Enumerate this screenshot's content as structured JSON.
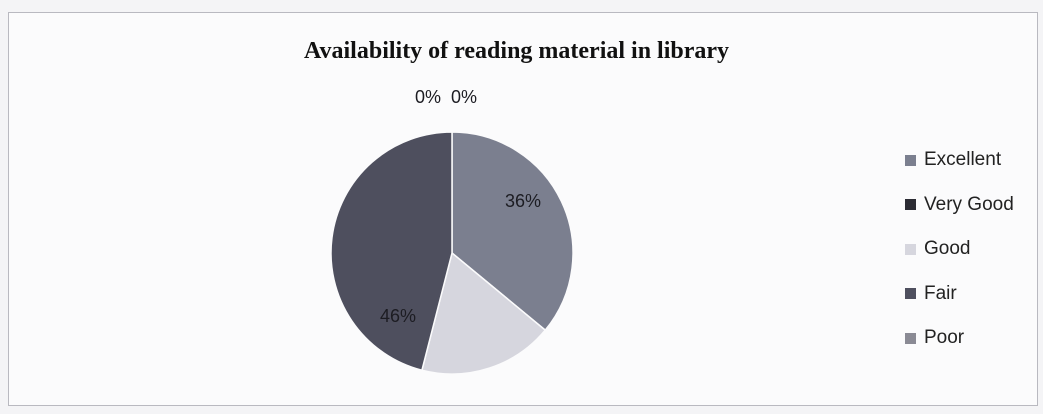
{
  "chart_data": {
    "type": "pie",
    "title": "Availability of reading material in  library",
    "slices": [
      {
        "label": "Excellent",
        "value": 36,
        "text": "36%",
        "color": "#7b7f8f"
      },
      {
        "label": "Very Good",
        "value": 0,
        "text": "0%",
        "color": "#2b2b33"
      },
      {
        "label": "Good",
        "value": 18,
        "text": "18%",
        "color": "#d6d6de"
      },
      {
        "label": "Fair",
        "value": 46,
        "text": "46%",
        "color": "#4e4f5e"
      },
      {
        "label": "Poor",
        "value": 0,
        "text": "0%",
        "color": "#8a8a94"
      }
    ],
    "legend_position": "right"
  }
}
